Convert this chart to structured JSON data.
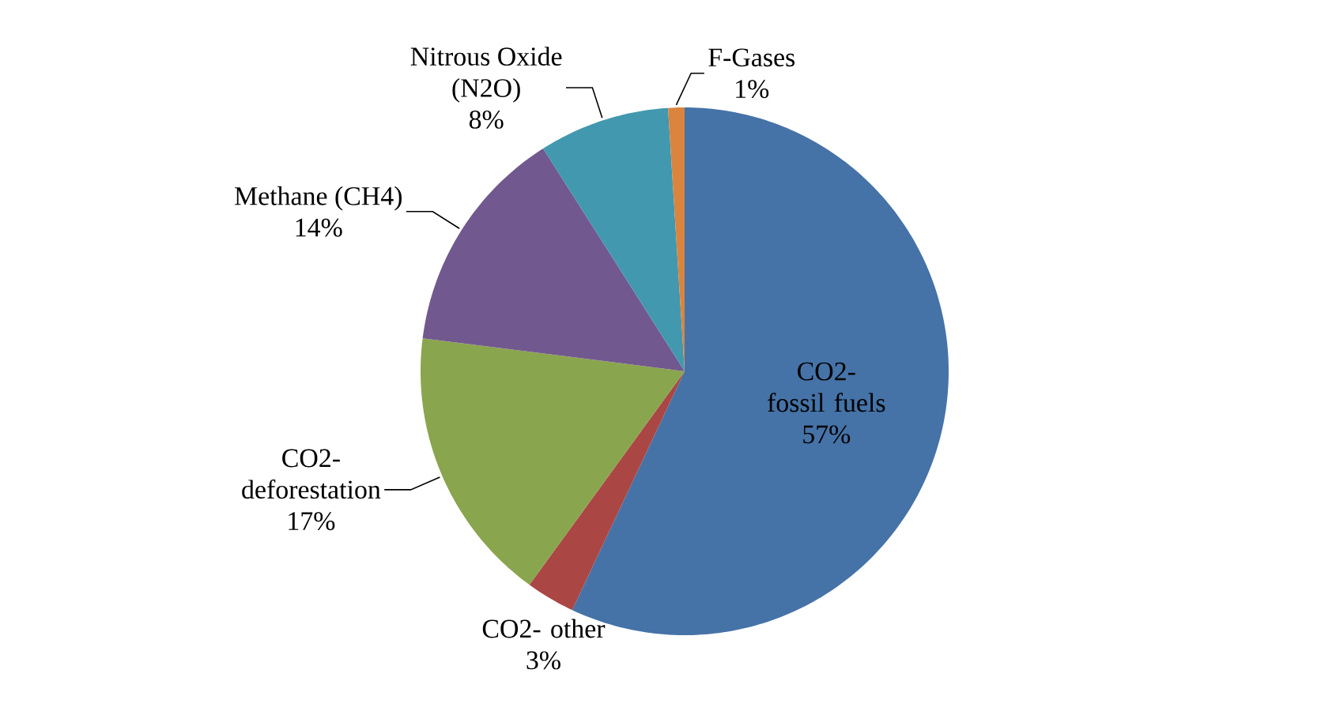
{
  "chart_data": {
    "type": "pie",
    "categories": [
      "CO2- fossil fuels",
      "CO2- other",
      "CO2- deforestation",
      "Methane (CH4)",
      "Nitrous Oxide (N2O)",
      "F-Gases"
    ],
    "values": [
      57,
      3,
      17,
      14,
      8,
      1
    ],
    "colors": [
      "#4572a7",
      "#aa4643",
      "#89a54e",
      "#71588f",
      "#4198af",
      "#db843d"
    ],
    "value_labels": [
      "57%",
      "3%",
      "17%",
      "14%",
      "8%",
      "1%"
    ]
  }
}
